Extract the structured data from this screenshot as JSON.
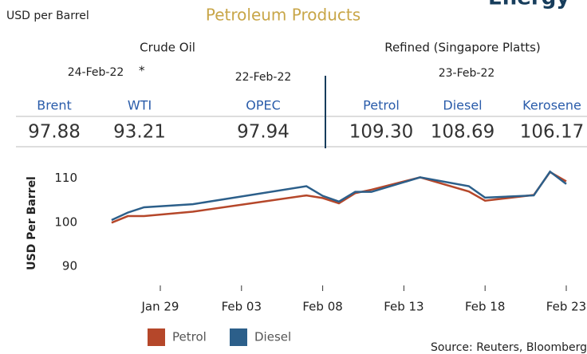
{
  "header": {
    "unit": "USD per Barrel",
    "title": "Petroleum Products",
    "brand": "Energy"
  },
  "prices": {
    "crude_heading": "Crude Oil",
    "refined_heading": "Refined (Singapore Platts)",
    "crude_date": "24-Feb-22",
    "crude_note": "*",
    "opec_date": "22-Feb-22",
    "refined_date": "23-Feb-22",
    "items": [
      {
        "name": "Brent",
        "price": "97.88"
      },
      {
        "name": "WTI",
        "price": "93.21"
      },
      {
        "name": "OPEC",
        "price": "97.94"
      },
      {
        "name": "Petrol",
        "price": "109.30"
      },
      {
        "name": "Diesel",
        "price": "108.69"
      },
      {
        "name": "Kerosene",
        "price": "106.17"
      }
    ]
  },
  "chart_data": {
    "type": "line",
    "ylabel": "USD Per Barrel",
    "x": [
      "Jan 26",
      "Jan 27",
      "Jan 28",
      "Jan 31",
      "Feb 07",
      "Feb 08",
      "Feb 09",
      "Feb 10",
      "Feb 11",
      "Feb 14",
      "Feb 17",
      "Feb 18",
      "Feb 21",
      "Feb 22",
      "Feb 23"
    ],
    "series": [
      {
        "name": "Petrol",
        "color": "#b5472a",
        "values": [
          99.9,
          101.4,
          101.4,
          102.4,
          106.1,
          105.5,
          104.3,
          106.6,
          107.4,
          110.2,
          107.0,
          104.9,
          106.2,
          111.4,
          109.3
        ]
      },
      {
        "name": "Diesel",
        "color": "#2c5f8a",
        "values": [
          100.5,
          102.2,
          103.4,
          104.1,
          108.2,
          106.0,
          104.7,
          106.9,
          106.9,
          110.2,
          108.2,
          105.6,
          106.1,
          111.5,
          108.69
        ]
      }
    ],
    "ylim": [
      88,
      113
    ],
    "yticks": [
      90,
      100,
      110
    ],
    "xticks": [
      "Jan 29",
      "Feb 03",
      "Feb 08",
      "Feb 13",
      "Feb 18",
      "Feb 23"
    ],
    "grid": false,
    "source": "Source: Reuters, Bloomberg"
  }
}
